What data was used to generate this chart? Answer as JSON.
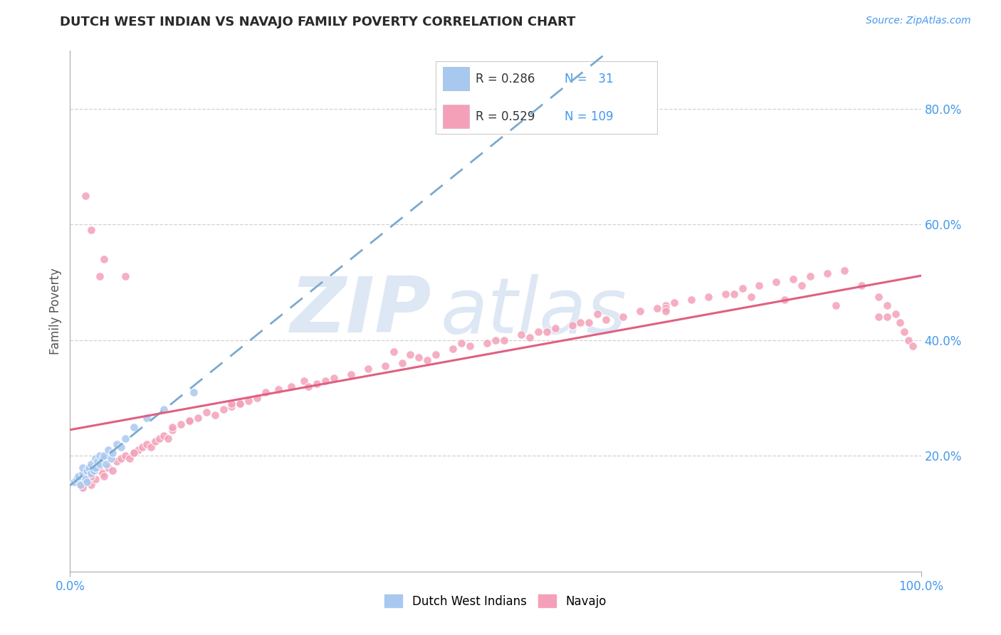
{
  "title": "DUTCH WEST INDIAN VS NAVAJO FAMILY POVERTY CORRELATION CHART",
  "source_text": "Source: ZipAtlas.com",
  "ylabel": "Family Poverty",
  "watermark_zip": "ZIP",
  "watermark_atlas": "atlas",
  "xmin": 0.0,
  "xmax": 1.0,
  "ymin": 0.0,
  "ymax": 0.9,
  "color_blue_fill": "#A8C8F0",
  "color_pink_fill": "#F4A0B8",
  "color_blue_line": "#7AAAD0",
  "color_pink_line": "#E06080",
  "color_blue_text": "#4499EE",
  "color_black_text": "#333333",
  "color_title": "#2A2A2A",
  "background_color": "#FFFFFF",
  "grid_color": "#CCCCCC",
  "watermark_color": "#C8D8EE",
  "legend_R1": "0.286",
  "legend_N1": "31",
  "legend_R2": "0.529",
  "legend_N2": "109",
  "dutch_x": [
    0.005,
    0.008,
    0.01,
    0.012,
    0.015,
    0.015,
    0.018,
    0.02,
    0.02,
    0.022,
    0.025,
    0.025,
    0.028,
    0.03,
    0.03,
    0.032,
    0.035,
    0.035,
    0.038,
    0.04,
    0.042,
    0.045,
    0.048,
    0.05,
    0.055,
    0.06,
    0.065,
    0.075,
    0.09,
    0.11,
    0.145
  ],
  "dutch_y": [
    0.155,
    0.16,
    0.165,
    0.15,
    0.17,
    0.18,
    0.16,
    0.155,
    0.175,
    0.18,
    0.17,
    0.185,
    0.175,
    0.18,
    0.195,
    0.19,
    0.185,
    0.2,
    0.195,
    0.2,
    0.185,
    0.21,
    0.195,
    0.205,
    0.22,
    0.215,
    0.23,
    0.25,
    0.265,
    0.28,
    0.31
  ],
  "navajo_x": [
    0.01,
    0.015,
    0.018,
    0.02,
    0.025,
    0.025,
    0.03,
    0.035,
    0.038,
    0.04,
    0.045,
    0.05,
    0.055,
    0.06,
    0.065,
    0.07,
    0.075,
    0.08,
    0.085,
    0.09,
    0.095,
    0.1,
    0.105,
    0.11,
    0.115,
    0.12,
    0.13,
    0.14,
    0.15,
    0.16,
    0.17,
    0.18,
    0.19,
    0.2,
    0.21,
    0.22,
    0.23,
    0.245,
    0.26,
    0.275,
    0.29,
    0.31,
    0.33,
    0.35,
    0.37,
    0.39,
    0.41,
    0.43,
    0.45,
    0.47,
    0.49,
    0.51,
    0.53,
    0.55,
    0.57,
    0.59,
    0.61,
    0.63,
    0.65,
    0.67,
    0.69,
    0.71,
    0.73,
    0.75,
    0.77,
    0.79,
    0.81,
    0.83,
    0.85,
    0.87,
    0.89,
    0.91,
    0.93,
    0.95,
    0.96,
    0.97,
    0.975,
    0.98,
    0.985,
    0.99,
    0.035,
    0.04,
    0.065,
    0.38,
    0.46,
    0.54,
    0.62,
    0.7,
    0.78,
    0.86,
    0.12,
    0.2,
    0.3,
    0.4,
    0.5,
    0.6,
    0.7,
    0.8,
    0.9,
    0.95,
    0.14,
    0.28,
    0.42,
    0.56,
    0.7,
    0.84,
    0.96,
    0.025,
    0.075,
    0.19
  ],
  "navajo_y": [
    0.155,
    0.145,
    0.65,
    0.16,
    0.15,
    0.59,
    0.16,
    0.175,
    0.17,
    0.165,
    0.18,
    0.175,
    0.19,
    0.195,
    0.2,
    0.195,
    0.205,
    0.21,
    0.215,
    0.22,
    0.215,
    0.225,
    0.23,
    0.235,
    0.23,
    0.245,
    0.255,
    0.26,
    0.265,
    0.275,
    0.27,
    0.28,
    0.285,
    0.29,
    0.295,
    0.3,
    0.31,
    0.315,
    0.32,
    0.33,
    0.325,
    0.335,
    0.34,
    0.35,
    0.355,
    0.36,
    0.37,
    0.375,
    0.385,
    0.39,
    0.395,
    0.4,
    0.41,
    0.415,
    0.42,
    0.425,
    0.43,
    0.435,
    0.44,
    0.45,
    0.455,
    0.465,
    0.47,
    0.475,
    0.48,
    0.49,
    0.495,
    0.5,
    0.505,
    0.51,
    0.515,
    0.52,
    0.495,
    0.475,
    0.46,
    0.445,
    0.43,
    0.415,
    0.4,
    0.39,
    0.51,
    0.54,
    0.51,
    0.38,
    0.395,
    0.405,
    0.445,
    0.46,
    0.48,
    0.495,
    0.25,
    0.29,
    0.33,
    0.375,
    0.4,
    0.43,
    0.455,
    0.475,
    0.46,
    0.44,
    0.26,
    0.32,
    0.365,
    0.415,
    0.45,
    0.47,
    0.44,
    0.165,
    0.205,
    0.29
  ]
}
